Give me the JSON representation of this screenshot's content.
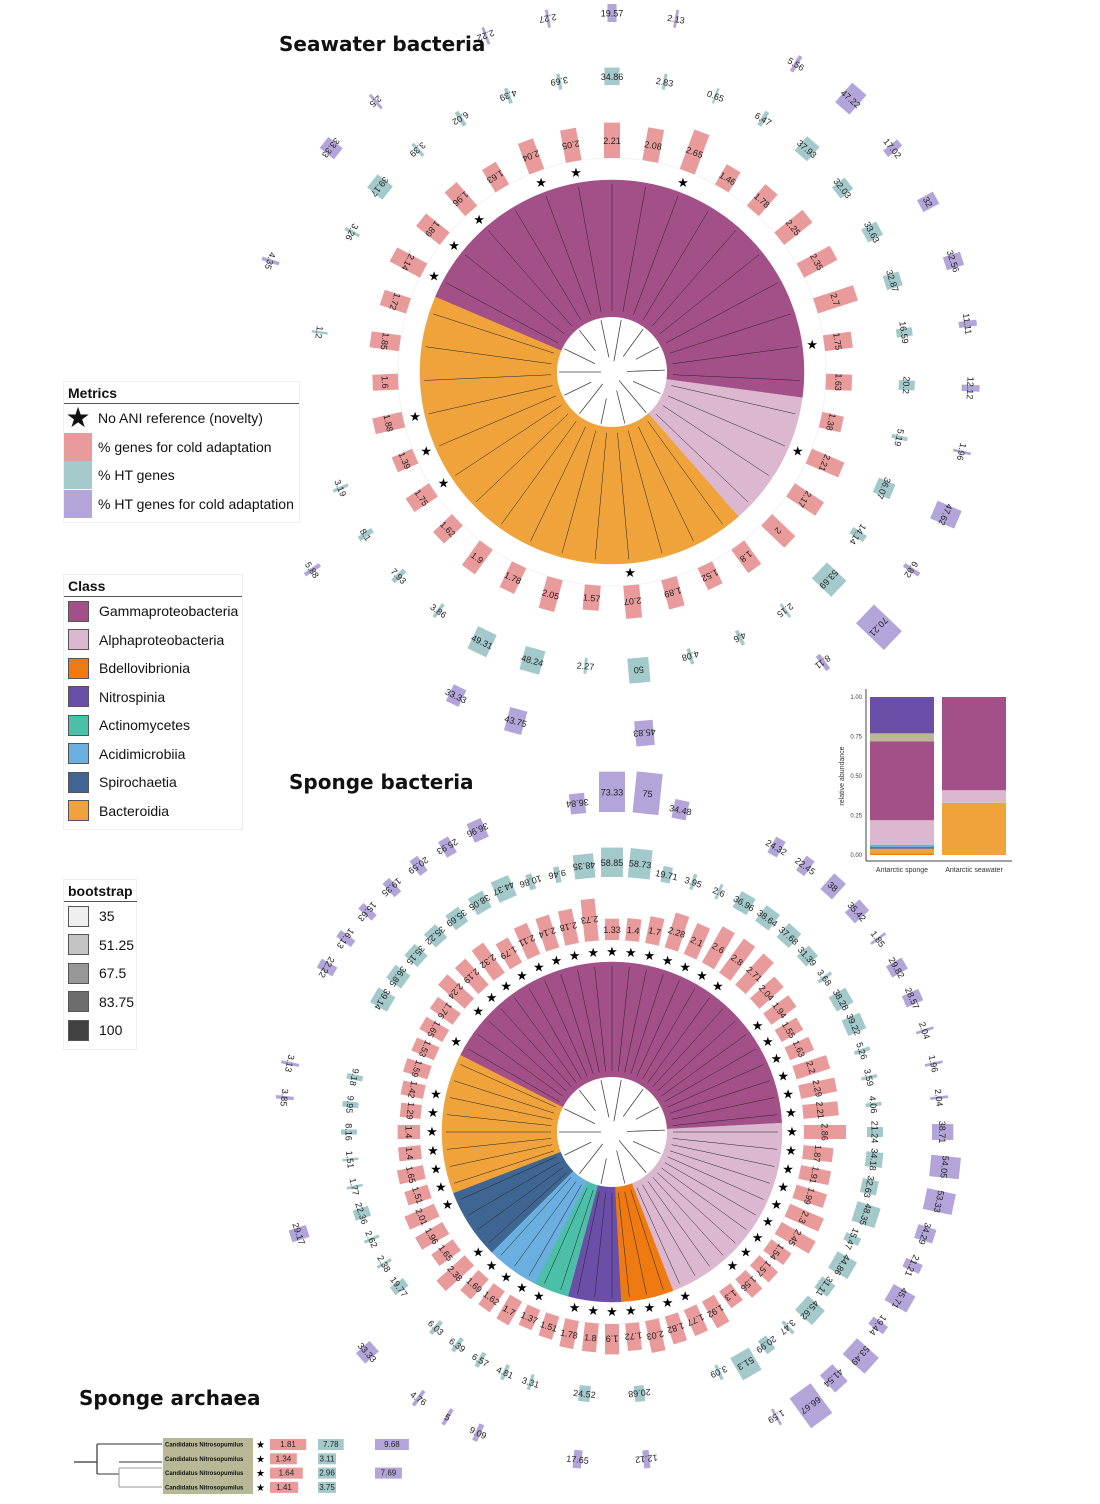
{
  "titles": {
    "seawater": "Seawater bacteria",
    "sponge": "Sponge bacteria",
    "archaea": "Sponge archaea"
  },
  "colors": {
    "cold": "#e99a9a",
    "ht": "#a3c9cb",
    "htcold": "#b3a5d9",
    "Gammaproteobacteria": "#a35088",
    "Alphaproteobacteria": "#dbb8d0",
    "Bdellovibrionia": "#f07a12",
    "Nitrospinia": "#6a4ea8",
    "Actinomycetes": "#4bbfa8",
    "Acidimicrobiia": "#6aafe0",
    "Spirochaetia": "#3f6593",
    "Bacteroidia": "#f0a33a",
    "Unassigned": "#b8b896"
  },
  "legend_metrics": {
    "title": "Metrics",
    "items": [
      {
        "icon": "star-icon",
        "label": "No ANI reference (novelty)"
      },
      {
        "swatch": "cold",
        "label": "% genes for cold adaptation"
      },
      {
        "swatch": "ht",
        "label": "% HT genes"
      },
      {
        "swatch": "htcold",
        "label": "% HT genes for cold adaptation"
      }
    ]
  },
  "legend_class": {
    "title": "Class",
    "items": [
      "Gammaproteobacteria",
      "Alphaproteobacteria",
      "Bdellovibrionia",
      "Nitrospinia",
      "Actinomycetes",
      "Acidimicrobiia",
      "Spirochaetia",
      "Bacteroidia"
    ]
  },
  "legend_bootstrap": {
    "title": "bootstrap",
    "items": [
      {
        "label": "35",
        "color": "#efefef"
      },
      {
        "label": "51.25",
        "color": "#c4c4c4"
      },
      {
        "label": "67.5",
        "color": "#989898"
      },
      {
        "label": "83.75",
        "color": "#6d6d6d"
      },
      {
        "label": "100",
        "color": "#414141"
      }
    ]
  },
  "chart_data": [
    {
      "type": "bar",
      "title": "Seawater bacteria",
      "layout": "circular",
      "series_names": [
        "% genes for cold adaptation",
        "% HT genes",
        "% HT genes for cold adaptation"
      ],
      "leaves": [
        {
          "class": "Gammaproteobacteria",
          "novel": false,
          "cold": 2.21,
          "ht": 34.86,
          "htcold": 19.57
        },
        {
          "class": "Gammaproteobacteria",
          "novel": false,
          "cold": 2.08,
          "ht": 2.83,
          "htcold": 2.13
        },
        {
          "class": "Gammaproteobacteria",
          "novel": true,
          "cold": 2.65,
          "ht": 0.65,
          "htcold": null
        },
        {
          "class": "Gammaproteobacteria",
          "novel": false,
          "cold": 1.46,
          "ht": 6.47,
          "htcold": 5.56
        },
        {
          "class": "Gammaproteobacteria",
          "novel": false,
          "cold": 1.78,
          "ht": 37.93,
          "htcold": 47.22
        },
        {
          "class": "Gammaproteobacteria",
          "novel": false,
          "cold": 2.25,
          "ht": 32.03,
          "htcold": 17.02
        },
        {
          "class": "Gammaproteobacteria",
          "novel": false,
          "cold": 2.35,
          "ht": 33.63,
          "htcold": 32
        },
        {
          "class": "Gammaproteobacteria",
          "novel": false,
          "cold": 2.7,
          "ht": 32.87,
          "htcold": 32.56
        },
        {
          "class": "Gammaproteobacteria",
          "novel": true,
          "cold": 1.75,
          "ht": 16.59,
          "htcold": 11.11
        },
        {
          "class": "Gammaproteobacteria",
          "novel": false,
          "cold": 1.63,
          "ht": 20.2,
          "htcold": 12.12
        },
        {
          "class": "Alphaproteobacteria",
          "novel": false,
          "cold": 1.38,
          "ht": 5.19,
          "htcold": 1.96
        },
        {
          "class": "Alphaproteobacteria",
          "novel": true,
          "cold": 2.21,
          "ht": 36.07,
          "htcold": 47.62
        },
        {
          "class": "Alphaproteobacteria",
          "novel": false,
          "cold": 2.17,
          "ht": 14.14,
          "htcold": 6.82
        },
        {
          "class": "Alphaproteobacteria",
          "novel": false,
          "cold": 2,
          "ht": 53.69,
          "htcold": 70.21
        },
        {
          "class": "Bacteroidia",
          "novel": false,
          "cold": 1.8,
          "ht": 2.15,
          "htcold": 8.11
        },
        {
          "class": "Bacteroidia",
          "novel": false,
          "cold": 1.52,
          "ht": 4.6,
          "htcold": null
        },
        {
          "class": "Bacteroidia",
          "novel": false,
          "cold": 1.89,
          "ht": 4.08,
          "htcold": null
        },
        {
          "class": "Bacteroidia",
          "novel": true,
          "cold": 2.07,
          "ht": 50,
          "htcold": 45.83
        },
        {
          "class": "Bacteroidia",
          "novel": false,
          "cold": 1.57,
          "ht": 2.27,
          "htcold": null
        },
        {
          "class": "Bacteroidia",
          "novel": false,
          "cold": 2.05,
          "ht": 48.24,
          "htcold": 43.75
        },
        {
          "class": "Bacteroidia",
          "novel": false,
          "cold": 1.78,
          "ht": 49.31,
          "htcold": 33.33
        },
        {
          "class": "Bacteroidia",
          "novel": false,
          "cold": 1.9,
          "ht": 3.86,
          "htcold": null
        },
        {
          "class": "Bacteroidia",
          "novel": false,
          "cold": 1.62,
          "ht": 7.93,
          "htcold": null
        },
        {
          "class": "Bacteroidia",
          "novel": true,
          "cold": 1.75,
          "ht": 8.1,
          "htcold": 5.88
        },
        {
          "class": "Bacteroidia",
          "novel": true,
          "cold": 1.39,
          "ht": 3.19,
          "htcold": null
        },
        {
          "class": "Bacteroidia",
          "novel": true,
          "cold": 1.88,
          "ht": null,
          "htcold": null
        },
        {
          "class": "Bacteroidia",
          "novel": false,
          "cold": 1.6,
          "ht": null,
          "htcold": null
        },
        {
          "class": "Bacteroidia",
          "novel": false,
          "cold": 1.85,
          "ht": 1.2,
          "htcold": null
        },
        {
          "class": "Bacteroidia",
          "novel": false,
          "cold": 1.72,
          "ht": null,
          "htcold": 4.35
        },
        {
          "class": "Gammaproteobacteria",
          "novel": true,
          "cold": 2.14,
          "ht": 3.26,
          "htcold": null
        },
        {
          "class": "Gammaproteobacteria",
          "novel": true,
          "cold": 1.89,
          "ht": 39.17,
          "htcold": 33.33
        },
        {
          "class": "Gammaproteobacteria",
          "novel": true,
          "cold": 1.96,
          "ht": 3.39,
          "htcold": 2.5
        },
        {
          "class": "Gammaproteobacteria",
          "novel": false,
          "cold": 1.63,
          "ht": 6.02,
          "htcold": null
        },
        {
          "class": "Gammaproteobacteria",
          "novel": true,
          "cold": 2.04,
          "ht": 4.39,
          "htcold": 2.22
        },
        {
          "class": "Gammaproteobacteria",
          "novel": true,
          "cold": 2.05,
          "ht": 3.69,
          "htcold": 2.27
        }
      ]
    },
    {
      "type": "bar",
      "title": "Sponge bacteria",
      "layout": "circular",
      "series_names": [
        "% genes for cold adaptation",
        "% HT genes",
        "% HT genes for cold adaptation"
      ],
      "leaves": [
        {
          "class": "Gammaproteobacteria",
          "novel": true,
          "cold": 1.33,
          "ht": 58.85,
          "htcold": 73.33
        },
        {
          "class": "Gammaproteobacteria",
          "novel": true,
          "cold": 1.4,
          "ht": 58.73,
          "htcold": 75
        },
        {
          "class": "Gammaproteobacteria",
          "novel": true,
          "cold": 1.7,
          "ht": 19.71,
          "htcold": 34.48
        },
        {
          "class": "Gammaproteobacteria",
          "novel": true,
          "cold": 2.28,
          "ht": 3.95,
          "htcold": null
        },
        {
          "class": "Gammaproteobacteria",
          "novel": true,
          "cold": 2.1,
          "ht": 2.6,
          "htcold": null
        },
        {
          "class": "Gammaproteobacteria",
          "novel": true,
          "cold": 2.6,
          "ht": 36.96,
          "htcold": 24.32
        },
        {
          "class": "Gammaproteobacteria",
          "novel": true,
          "cold": 2.8,
          "ht": 38.64,
          "htcold": 22.45
        },
        {
          "class": "Gammaproteobacteria",
          "novel": false,
          "cold": 2.71,
          "ht": 37.68,
          "htcold": 38
        },
        {
          "class": "Gammaproteobacteria",
          "novel": false,
          "cold": 2.04,
          "ht": 31.39,
          "htcold": 35.42
        },
        {
          "class": "Gammaproteobacteria",
          "novel": true,
          "cold": 1.94,
          "ht": 3.68,
          "htcold": 1.85
        },
        {
          "class": "Gammaproteobacteria",
          "novel": true,
          "cold": 1.55,
          "ht": 38.28,
          "htcold": 29.82
        },
        {
          "class": "Gammaproteobacteria",
          "novel": true,
          "cold": 1.63,
          "ht": 39.22,
          "htcold": 28.57
        },
        {
          "class": "Gammaproteobacteria",
          "novel": true,
          "cold": 2.2,
          "ht": 5.26,
          "htcold": 2.04
        },
        {
          "class": "Gammaproteobacteria",
          "novel": true,
          "cold": 2.29,
          "ht": 3.59,
          "htcold": 1.96
        },
        {
          "class": "Gammaproteobacteria",
          "novel": true,
          "cold": 2.21,
          "ht": 4.06,
          "htcold": 2.04
        },
        {
          "class": "Alphaproteobacteria",
          "novel": true,
          "cold": 2.86,
          "ht": 21.24,
          "htcold": 38.71
        },
        {
          "class": "Alphaproteobacteria",
          "novel": true,
          "cold": 1.87,
          "ht": 34.18,
          "htcold": 54.05
        },
        {
          "class": "Alphaproteobacteria",
          "novel": true,
          "cold": 1.91,
          "ht": 32.63,
          "htcold": 53.33
        },
        {
          "class": "Alphaproteobacteria",
          "novel": true,
          "cold": 1.99,
          "ht": 48.35,
          "htcold": 34.29
        },
        {
          "class": "Alphaproteobacteria",
          "novel": true,
          "cold": 2.3,
          "ht": 15.47,
          "htcold": 21.21
        },
        {
          "class": "Alphaproteobacteria",
          "novel": true,
          "cold": 2.45,
          "ht": 44.86,
          "htcold": 45.71
        },
        {
          "class": "Alphaproteobacteria",
          "novel": true,
          "cold": 1.54,
          "ht": 31.11,
          "htcold": 19.44
        },
        {
          "class": "Alphaproteobacteria",
          "novel": true,
          "cold": 1.57,
          "ht": 45.62,
          "htcold": 53.49
        },
        {
          "class": "Alphaproteobacteria",
          "novel": true,
          "cold": 1.56,
          "ht": 3.47,
          "htcold": 41.54
        },
        {
          "class": "Alphaproteobacteria",
          "novel": false,
          "cold": 1.3,
          "ht": 20.99,
          "htcold": 66.67
        },
        {
          "class": "Alphaproteobacteria",
          "novel": false,
          "cold": 1.92,
          "ht": 51.3,
          "htcold": 1.59
        },
        {
          "class": "Alphaproteobacteria",
          "novel": true,
          "cold": 1.77,
          "ht": 3.09,
          "htcold": null
        },
        {
          "class": "Bdellovibrionia",
          "novel": true,
          "cold": 1.82,
          "ht": null,
          "htcold": null
        },
        {
          "class": "Bdellovibrionia",
          "novel": true,
          "cold": 2.03,
          "ht": null,
          "htcold": null
        },
        {
          "class": "Bdellovibrionia",
          "novel": true,
          "cold": 1.72,
          "ht": 20.68,
          "htcold": 12.12
        },
        {
          "class": "Nitrospinia",
          "novel": true,
          "cold": 1.9,
          "ht": null,
          "htcold": null
        },
        {
          "class": "Nitrospinia",
          "novel": true,
          "cold": 1.8,
          "ht": 24.52,
          "htcold": 17.65
        },
        {
          "class": "Nitrospinia",
          "novel": true,
          "cold": 1.78,
          "ht": null,
          "htcold": null
        },
        {
          "class": "Actinomycetes",
          "novel": false,
          "cold": 1.51,
          "ht": 3.31,
          "htcold": null
        },
        {
          "class": "Actinomycetes",
          "novel": true,
          "cold": 1.37,
          "ht": 4.81,
          "htcold": 9.09
        },
        {
          "class": "Acidimicrobiia",
          "novel": true,
          "cold": 1.7,
          "ht": 6.57,
          "htcold": 5
        },
        {
          "class": "Acidimicrobiia",
          "novel": true,
          "cold": 1.62,
          "ht": 6.39,
          "htcold": 4.76
        },
        {
          "class": "Acidimicrobiia",
          "novel": true,
          "cold": 1.69,
          "ht": 6.03,
          "htcold": null
        },
        {
          "class": "Spirochaetia",
          "novel": true,
          "cold": 2.38,
          "ht": null,
          "htcold": 33.33
        },
        {
          "class": "Spirochaetia",
          "novel": false,
          "cold": 1.65,
          "ht": 19.77,
          "htcold": null
        },
        {
          "class": "Spirochaetia",
          "novel": false,
          "cold": 1.96,
          "ht": 2.38,
          "htcold": null
        },
        {
          "class": "Spirochaetia",
          "novel": true,
          "cold": 2.01,
          "ht": 2.62,
          "htcold": null
        },
        {
          "class": "Bacteroidia",
          "novel": true,
          "cold": 1.51,
          "ht": 22.36,
          "htcold": 29.17
        },
        {
          "class": "Bacteroidia",
          "novel": true,
          "cold": 1.65,
          "ht": 1.77,
          "htcold": null
        },
        {
          "class": "Bacteroidia",
          "novel": true,
          "cold": 1.4,
          "ht": 1.51,
          "htcold": null
        },
        {
          "class": "Bacteroidia",
          "novel": true,
          "cold": 1.4,
          "ht": 8.16,
          "htcold": null
        },
        {
          "class": "Bacteroidia",
          "novel": true,
          "cold": 1.29,
          "ht": 9.95,
          "htcold": 3.85
        },
        {
          "class": "Bacteroidia",
          "novel": true,
          "cold": 1.42,
          "ht": 9.18,
          "htcold": 3.13
        },
        {
          "class": "Bacteroidia",
          "novel": false,
          "cold": 1.59,
          "ht": null,
          "htcold": null
        },
        {
          "class": "Bacteroidia",
          "novel": false,
          "cold": 1.53,
          "ht": null,
          "htcold": null
        },
        {
          "class": "Gammaproteobacteria",
          "novel": true,
          "cold": 1.65,
          "ht": 39.14,
          "htcold": 22.22
        },
        {
          "class": "Gammaproteobacteria",
          "novel": false,
          "cold": 1.76,
          "ht": 36.85,
          "htcold": 16.13
        },
        {
          "class": "Gammaproteobacteria",
          "novel": true,
          "cold": 2.24,
          "ht": 35.15,
          "htcold": 15.63
        },
        {
          "class": "Gammaproteobacteria",
          "novel": true,
          "cold": 2.19,
          "ht": 35.22,
          "htcold": 19.35
        },
        {
          "class": "Gammaproteobacteria",
          "novel": true,
          "cold": 2.32,
          "ht": 35.69,
          "htcold": 20.59
        },
        {
          "class": "Gammaproteobacteria",
          "novel": true,
          "cold": 1.79,
          "ht": 38.05,
          "htcold": 25.93
        },
        {
          "class": "Gammaproteobacteria",
          "novel": true,
          "cold": 2.11,
          "ht": 44.37,
          "htcold": 36.96
        },
        {
          "class": "Gammaproteobacteria",
          "novel": true,
          "cold": 2.14,
          "ht": 10.86,
          "htcold": null
        },
        {
          "class": "Gammaproteobacteria",
          "novel": true,
          "cold": 2.18,
          "ht": 9.46,
          "htcold": null
        },
        {
          "class": "Gammaproteobacteria",
          "novel": true,
          "cold": 2.73,
          "ht": 48.35,
          "htcold": 36.84
        }
      ]
    },
    {
      "type": "bar",
      "title": "",
      "ylabel": "relative abundance",
      "ylim": [
        0,
        1
      ],
      "yticks": [
        "0.00",
        "0.25",
        "0.50",
        "0.75",
        "1.00"
      ],
      "categories": [
        "Antarctic sponge",
        "Antarctic seawater"
      ],
      "stacked": true,
      "series": [
        {
          "name": "Bdellovibrionia",
          "values": [
            0.01,
            0
          ]
        },
        {
          "name": "Bacteroidia",
          "values": [
            0.03,
            0.33
          ]
        },
        {
          "name": "Spirochaetia",
          "values": [
            0.01,
            0
          ]
        },
        {
          "name": "Acidimicrobiia",
          "values": [
            0.01,
            0
          ]
        },
        {
          "name": "Actinomycetes",
          "values": [
            0.005,
            0
          ]
        },
        {
          "name": "Alphaproteobacteria",
          "values": [
            0.155,
            0.08
          ]
        },
        {
          "name": "Gammaproteobacteria",
          "values": [
            0.5,
            0.59
          ]
        },
        {
          "name": "Unassigned",
          "values": [
            0.05,
            0
          ]
        },
        {
          "name": "Nitrospinia",
          "values": [
            0.23,
            0
          ]
        }
      ]
    },
    {
      "type": "table",
      "title": "Sponge archaea",
      "rows": [
        {
          "name": "Candidatus Nitrosopumilus",
          "novel": true,
          "cold": 1.81,
          "ht": 7.78,
          "htcold": 9.68
        },
        {
          "name": "Candidatus Nitrosopumilus",
          "novel": true,
          "cold": 1.34,
          "ht": 3.11,
          "htcold": null
        },
        {
          "name": "Candidatus Nitrosopumilus",
          "novel": true,
          "cold": 1.64,
          "ht": 2.96,
          "htcold": 7.69
        },
        {
          "name": "Candidatus Nitrosopumilus",
          "novel": true,
          "cold": 1.41,
          "ht": 3.75,
          "htcold": null
        }
      ]
    }
  ]
}
